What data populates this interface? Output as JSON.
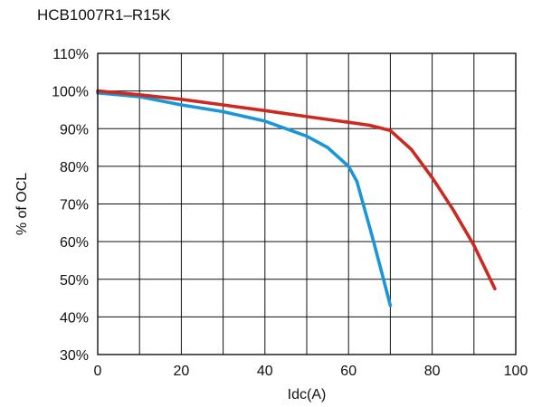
{
  "chart_data": {
    "type": "line",
    "title": "HCB1007R1–R15K",
    "xlabel": "Idc(A)",
    "ylabel": "% of OCL",
    "xlim": [
      0,
      100
    ],
    "ylim": [
      30,
      110
    ],
    "x_ticks": [
      0,
      20,
      40,
      60,
      80,
      100
    ],
    "y_ticks": [
      30,
      40,
      50,
      60,
      70,
      80,
      90,
      100,
      110
    ],
    "y_tick_suffix": "%",
    "grid": true,
    "series": [
      {
        "color": "#1a96d8",
        "x": [
          0,
          10,
          20,
          30,
          40,
          50,
          55,
          60,
          62,
          64,
          66,
          68,
          70
        ],
        "y": [
          99.5,
          98.5,
          96.3,
          94.5,
          92,
          88,
          85,
          80,
          76,
          68,
          60,
          51.5,
          43
        ]
      },
      {
        "color": "#cc2a20",
        "x": [
          0,
          10,
          20,
          30,
          40,
          50,
          60,
          65,
          70,
          75,
          80,
          85,
          90,
          95
        ],
        "y": [
          100,
          99,
          97.8,
          96.3,
          94.8,
          93.2,
          91.7,
          90.9,
          89.5,
          84.5,
          77,
          68.5,
          59,
          47.5
        ]
      }
    ]
  }
}
